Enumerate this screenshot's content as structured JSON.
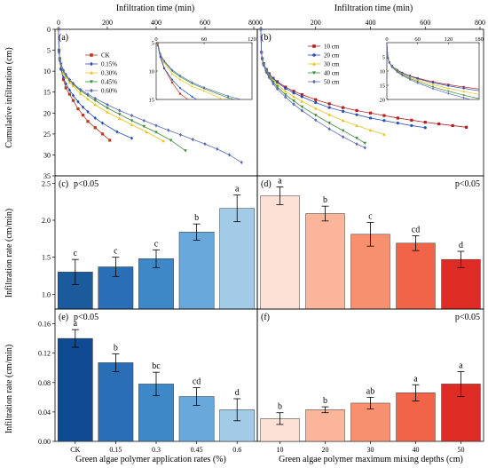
{
  "figure": {
    "top_xlabel_left": "Infiltration time (min)",
    "top_xlabel_right": "Infiltration time (min)",
    "ylabel_top": "Cumulative infiltration (cm)",
    "ylabel_mid": "Infiltration rate (cm/min)",
    "ylabel_bot": "Infiltration rate (cm/min)",
    "xlabel_bot_left": "Green algae polymer application rates (%)",
    "xlabel_bot_right": "Green algae polymer maximum mixing depths (cm)"
  },
  "chart_data": [
    {
      "id": "a",
      "type": "scatter",
      "panel_label": "(a)",
      "xlim": [
        0,
        800
      ],
      "ylim": [
        0,
        35
      ],
      "x_ticks": [
        "0",
        "200",
        "400",
        "600",
        "800"
      ],
      "y_ticks": [
        "0",
        "5",
        "10",
        "15",
        "20",
        "25",
        "30",
        "35"
      ],
      "y_inverted": true,
      "legend": "top-left",
      "series": [
        {
          "name": "CK",
          "color": "#b8391e",
          "marker": "square",
          "x": [
            0,
            2,
            5,
            10,
            20,
            30,
            45,
            60,
            80,
            100,
            120,
            150,
            180,
            210
          ],
          "y": [
            0,
            5,
            7,
            9.5,
            12,
            14,
            15.5,
            17,
            19,
            20.5,
            22,
            23.5,
            25,
            26.5
          ]
        },
        {
          "name": "0.15%",
          "color": "#2a4fb0",
          "marker": "diamond",
          "x": [
            0,
            2,
            5,
            10,
            20,
            30,
            45,
            60,
            80,
            100,
            120,
            150,
            180,
            240,
            300
          ],
          "y": [
            0,
            5.5,
            7.5,
            9.5,
            11.5,
            13,
            14.5,
            15.8,
            17.3,
            18.6,
            19.7,
            21.2,
            22.4,
            24.5,
            26
          ]
        },
        {
          "name": "0.30%",
          "color": "#e8c21a",
          "marker": "triangle",
          "x": [
            0,
            2,
            5,
            10,
            20,
            30,
            45,
            60,
            90,
            120,
            150,
            200,
            250,
            300,
            360,
            430
          ],
          "y": [
            0,
            5.5,
            7,
            8.5,
            10.5,
            11.5,
            12.7,
            13.5,
            15.4,
            16.7,
            18,
            19.8,
            21.3,
            22.8,
            24.5,
            26.7
          ]
        },
        {
          "name": "0.45%",
          "color": "#3b8a3b",
          "marker": "triangle-down",
          "x": [
            0,
            2,
            5,
            10,
            20,
            30,
            45,
            60,
            90,
            120,
            150,
            200,
            250,
            300,
            350,
            400,
            460,
            520
          ],
          "y": [
            0,
            5.5,
            7,
            8.3,
            10,
            11,
            12.2,
            13.1,
            14.7,
            15.8,
            17,
            18.8,
            20.3,
            21.8,
            23.2,
            24.6,
            26.5,
            29
          ]
        },
        {
          "name": "0.60%",
          "color": "#5a68b8",
          "marker": "diamond",
          "x": [
            0,
            2,
            5,
            10,
            20,
            30,
            45,
            60,
            90,
            120,
            150,
            200,
            250,
            300,
            350,
            400,
            450,
            500,
            550,
            600,
            650,
            700,
            750
          ],
          "y": [
            0,
            5.5,
            7,
            8.2,
            9.8,
            10.8,
            12,
            12.9,
            14.4,
            15.5,
            16.5,
            18,
            19.4,
            20.6,
            21.8,
            23,
            24.1,
            25.2,
            26.3,
            27.4,
            28.6,
            30,
            31.8
          ]
        }
      ],
      "inset": {
        "xlim": [
          0,
          120
        ],
        "ylim": [
          5,
          15
        ],
        "x_ticks": [
          "0",
          "60",
          "120"
        ],
        "y_ticks": [
          "5",
          "10",
          "15"
        ]
      }
    },
    {
      "id": "b",
      "type": "scatter",
      "panel_label": "(b)",
      "xlim": [
        0,
        800
      ],
      "ylim": [
        0,
        35
      ],
      "x_ticks": [
        "0",
        "200",
        "400",
        "600",
        "800"
      ],
      "y_inverted": true,
      "legend": "top-left",
      "series": [
        {
          "name": "10 cm",
          "color": "#b02020",
          "marker": "square",
          "x": [
            0,
            2,
            5,
            10,
            20,
            30,
            45,
            60,
            90,
            120,
            150,
            200,
            250,
            300,
            350,
            400,
            450,
            500,
            550,
            600,
            650,
            700,
            750
          ],
          "y": [
            0,
            5.5,
            7,
            8.2,
            9.6,
            10.6,
            11.7,
            12.5,
            13.8,
            14.8,
            15.6,
            16.8,
            17.8,
            18.7,
            19.4,
            20,
            20.6,
            21.2,
            21.7,
            22.2,
            22.6,
            23,
            23.4
          ]
        },
        {
          "name": "20 cm",
          "color": "#2a4fb0",
          "marker": "circle",
          "x": [
            0,
            2,
            5,
            10,
            20,
            30,
            45,
            60,
            90,
            120,
            150,
            200,
            250,
            300,
            350,
            400,
            450,
            500,
            550,
            600
          ],
          "y": [
            0,
            5.5,
            7,
            8.2,
            9.7,
            10.7,
            11.8,
            12.7,
            14.1,
            15.2,
            16.1,
            17.5,
            18.7,
            19.6,
            20.4,
            21.2,
            21.8,
            22.4,
            23,
            23.5
          ]
        },
        {
          "name": "30 cm",
          "color": "#e8c21a",
          "marker": "triangle",
          "x": [
            0,
            2,
            5,
            10,
            20,
            30,
            45,
            60,
            90,
            120,
            150,
            200,
            250,
            300,
            350,
            400,
            450
          ],
          "y": [
            0,
            5.5,
            7,
            8.3,
            9.9,
            11,
            12.2,
            13.2,
            14.8,
            16.1,
            17.2,
            18.9,
            20.4,
            21.8,
            23,
            24.1,
            25.1
          ]
        },
        {
          "name": "40 cm",
          "color": "#3b8a3b",
          "marker": "triangle-down",
          "x": [
            0,
            2,
            5,
            10,
            20,
            30,
            45,
            60,
            90,
            120,
            150,
            200,
            250,
            300,
            350,
            380
          ],
          "y": [
            0,
            5.5,
            7,
            8.4,
            10.1,
            11.2,
            12.6,
            13.7,
            15.6,
            17.1,
            18.5,
            20.5,
            22.4,
            24.2,
            26,
            27.2
          ]
        },
        {
          "name": "50 cm",
          "color": "#5a68b8",
          "marker": "diamond",
          "x": [
            0,
            2,
            5,
            10,
            20,
            30,
            45,
            60,
            90,
            120,
            150,
            200,
            250,
            300,
            350,
            380
          ],
          "y": [
            0,
            5.5,
            7.1,
            8.6,
            10.3,
            11.5,
            13,
            14.2,
            16.2,
            17.9,
            19.4,
            21.7,
            23.8,
            25.7,
            27.4,
            28.3
          ]
        }
      ],
      "inset": {
        "xlim": [
          0,
          180
        ],
        "ylim": [
          0,
          20
        ],
        "x_ticks": [
          "0",
          "60",
          "120",
          "180"
        ],
        "y_ticks": [
          "5",
          "10",
          "15",
          "20"
        ]
      }
    },
    {
      "id": "c",
      "type": "bar",
      "panel_label": "(c)",
      "significance": "p<0.05",
      "categories": [
        "CK",
        "0.15",
        "0.3",
        "0.45",
        "0.6"
      ],
      "values": [
        1.3,
        1.37,
        1.48,
        1.84,
        2.16
      ],
      "errors": [
        0.17,
        0.13,
        0.12,
        0.11,
        0.18
      ],
      "letters": [
        "c",
        "c",
        "c",
        "b",
        "a"
      ],
      "colors": [
        "#1c5a9e",
        "#2a6eb6",
        "#3e88c8",
        "#68a8da",
        "#a2cbe8"
      ],
      "ylim": [
        0.8,
        2.6
      ],
      "y_ticks": [
        "1.0",
        "1.5",
        "2.0",
        "2.5"
      ]
    },
    {
      "id": "d",
      "type": "bar",
      "panel_label": "(d)",
      "significance": "p<0.05",
      "categories": [
        "10",
        "20",
        "30",
        "40",
        "50"
      ],
      "values": [
        2.33,
        2.09,
        1.81,
        1.69,
        1.47
      ],
      "errors": [
        0.12,
        0.1,
        0.16,
        0.1,
        0.11
      ],
      "letters": [
        "a",
        "b",
        "c",
        "cd",
        "d"
      ],
      "colors": [
        "#fde1d6",
        "#fbb59a",
        "#f7906f",
        "#f26448",
        "#de2b24"
      ],
      "ylim": [
        0.8,
        2.6
      ]
    },
    {
      "id": "e",
      "type": "bar",
      "panel_label": "(e)",
      "significance": "p<0.05",
      "categories": [
        "CK",
        "0.15",
        "0.3",
        "0.45",
        "0.6"
      ],
      "values": [
        0.14,
        0.107,
        0.078,
        0.061,
        0.043
      ],
      "errors": [
        0.012,
        0.012,
        0.016,
        0.012,
        0.015
      ],
      "letters": [
        "a",
        "b",
        "bc",
        "cd",
        "d"
      ],
      "colors": [
        "#0f4a93",
        "#2a6eb6",
        "#3e88c8",
        "#68a8da",
        "#a2cbe8"
      ],
      "ylim": [
        0,
        0.18
      ],
      "y_ticks": [
        "0.00",
        "0.04",
        "0.08",
        "0.12",
        "0.16"
      ]
    },
    {
      "id": "f",
      "type": "bar",
      "panel_label": "(f)",
      "significance": "p<0.05",
      "categories": [
        "10",
        "20",
        "30",
        "40",
        "50"
      ],
      "values": [
        0.031,
        0.043,
        0.052,
        0.066,
        0.078
      ],
      "errors": [
        0.008,
        0.004,
        0.008,
        0.011,
        0.017
      ],
      "letters": [
        "b",
        "b",
        "ab",
        "a",
        "a"
      ],
      "colors": [
        "#fde1d6",
        "#fbb59a",
        "#f7906f",
        "#f26448",
        "#de2b24"
      ],
      "ylim": [
        0,
        0.18
      ]
    }
  ]
}
